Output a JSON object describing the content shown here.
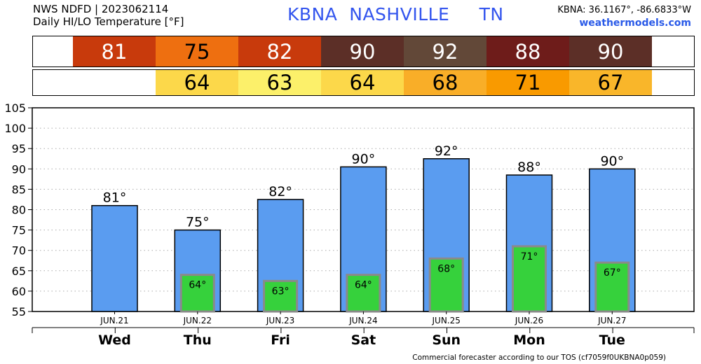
{
  "header": {
    "line1": "NWS NDFD | 2023062114",
    "line2": "Daily HI/LO Temperature [°F]",
    "title": "KBNA  NASHVILLE     TN",
    "coords": "KBNA: 36.1167°, -86.6833°W",
    "site": "weathermodels.com"
  },
  "hi_band": [
    {
      "value": "81",
      "color": "#c83a0c",
      "text_color": "#ffffff"
    },
    {
      "value": "75",
      "color": "#ee6f10",
      "text_color": "#000000"
    },
    {
      "value": "82",
      "color": "#c83a0c",
      "text_color": "#ffffff"
    },
    {
      "value": "90",
      "color": "#5c2f27",
      "text_color": "#ffffff"
    },
    {
      "value": "92",
      "color": "#624838",
      "text_color": "#ffffff"
    },
    {
      "value": "88",
      "color": "#6e1c1a",
      "text_color": "#ffffff"
    },
    {
      "value": "90",
      "color": "#5c2f27",
      "text_color": "#ffffff"
    }
  ],
  "lo_band": [
    {
      "value": "",
      "color": "#ffffff",
      "text_color": "#000000"
    },
    {
      "value": "64",
      "color": "#fcd84a",
      "text_color": "#000000"
    },
    {
      "value": "63",
      "color": "#fcf06a",
      "text_color": "#000000"
    },
    {
      "value": "64",
      "color": "#fcd84a",
      "text_color": "#000000"
    },
    {
      "value": "68",
      "color": "#f9ae28",
      "text_color": "#000000"
    },
    {
      "value": "71",
      "color": "#f99a00",
      "text_color": "#000000"
    },
    {
      "value": "67",
      "color": "#f9b62a",
      "text_color": "#000000"
    }
  ],
  "chart_data": {
    "type": "bar",
    "categories": [
      "Wed",
      "Thu",
      "Fri",
      "Sat",
      "Sun",
      "Mon",
      "Tue"
    ],
    "dates": [
      "JUN.21",
      "JUN.22",
      "JUN.23",
      "JUN.24",
      "JUN.25",
      "JUN.26",
      "JUN.27"
    ],
    "hi_labels": [
      "81°",
      "75°",
      "82°",
      "90°",
      "92°",
      "88°",
      "90°"
    ],
    "lo_labels": [
      "",
      "64°",
      "63°",
      "64°",
      "68°",
      "71°",
      "67°"
    ],
    "series": [
      {
        "values": [
          81,
          75,
          82.5,
          90.5,
          92.5,
          88.5,
          90
        ],
        "color": "#5a9cf0"
      },
      {
        "values": [
          null,
          64,
          62.5,
          64,
          68,
          71,
          67
        ],
        "color": "#36d13c"
      }
    ],
    "yticks": [
      55,
      60,
      65,
      70,
      75,
      80,
      85,
      90,
      95,
      100,
      105
    ],
    "ylim": [
      55,
      105
    ],
    "grid": true
  },
  "footer": "Commercial forecaster according to our TOS (cf7059f0UKBNA0p059)"
}
